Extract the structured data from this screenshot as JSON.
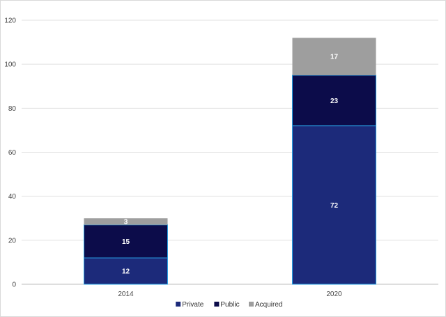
{
  "chart_data": {
    "type": "bar",
    "stacked": true,
    "categories": [
      "2014",
      "2020"
    ],
    "series": [
      {
        "name": "Private",
        "values": [
          12,
          72
        ],
        "color": "#1c2a7a",
        "label_color": "#ffffff"
      },
      {
        "name": "Public",
        "values": [
          15,
          23
        ],
        "color": "#0c0c4a",
        "label_color": "#ffffff"
      },
      {
        "name": "Acquired",
        "values": [
          3,
          17
        ],
        "color": "#9e9e9e",
        "label_color": "#ffffff"
      }
    ],
    "title": "",
    "xlabel": "",
    "ylabel": "",
    "ylim": [
      0,
      120
    ],
    "yticks": [
      0,
      20,
      40,
      60,
      80,
      100,
      120
    ],
    "grid": true,
    "legend_position": "bottom-center",
    "segment_border_color": "#29a3e6"
  }
}
